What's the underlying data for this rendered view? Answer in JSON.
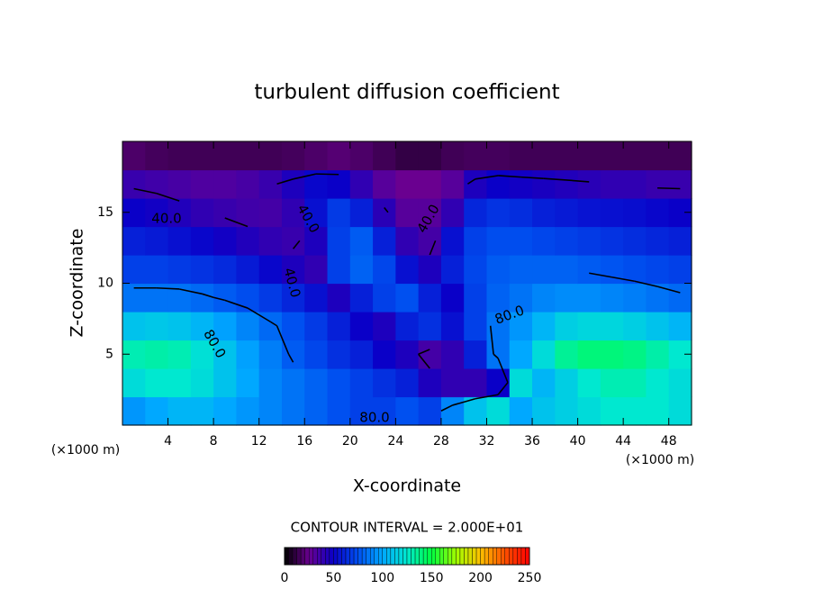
{
  "chart_data": {
    "type": "contour",
    "title": "turbulent diffusion coefficient",
    "x_label": "X-coordinate",
    "y_label": "Z-coordinate",
    "x_unit": "(×1000 m)",
    "y_unit": "(×1000 m)",
    "xlim": [
      0,
      50
    ],
    "ylim": [
      0,
      20
    ],
    "xticks": [
      4,
      8,
      12,
      16,
      20,
      24,
      28,
      32,
      36,
      40,
      44,
      48
    ],
    "yticks": [
      5,
      10,
      15
    ],
    "z": [
      [
        95,
        100,
        105,
        105,
        100,
        95,
        90,
        85,
        80,
        75,
        70,
        70,
        75,
        70,
        90,
        110,
        120,
        100,
        110,
        115,
        120,
        125,
        125,
        125,
        120
      ],
      [
        120,
        125,
        125,
        120,
        110,
        100,
        90,
        85,
        80,
        75,
        70,
        65,
        60,
        45,
        40,
        40,
        50,
        120,
        105,
        115,
        125,
        130,
        130,
        125,
        120
      ],
      [
        130,
        132,
        130,
        122,
        110,
        98,
        88,
        78,
        72,
        65,
        60,
        50,
        45,
        35,
        40,
        60,
        85,
        100,
        120,
        135,
        140,
        140,
        138,
        132,
        125
      ],
      [
        110,
        112,
        110,
        105,
        98,
        90,
        82,
        75,
        68,
        60,
        50,
        45,
        60,
        65,
        55,
        70,
        85,
        95,
        105,
        115,
        118,
        118,
        115,
        110,
        105
      ],
      [
        85,
        85,
        85,
        82,
        78,
        74,
        68,
        62,
        55,
        45,
        60,
        70,
        75,
        60,
        50,
        70,
        80,
        85,
        90,
        92,
        92,
        90,
        88,
        85,
        82
      ],
      [
        70,
        70,
        68,
        66,
        63,
        58,
        52,
        45,
        40,
        70,
        80,
        72,
        55,
        45,
        60,
        72,
        78,
        80,
        80,
        80,
        78,
        76,
        74,
        72,
        70
      ],
      [
        60,
        58,
        55,
        52,
        48,
        44,
        40,
        38,
        45,
        70,
        78,
        60,
        40,
        35,
        55,
        70,
        74,
        74,
        72,
        70,
        68,
        66,
        64,
        62,
        60
      ],
      [
        50,
        48,
        44,
        40,
        38,
        36,
        35,
        40,
        55,
        68,
        60,
        42,
        30,
        30,
        40,
        62,
        66,
        64,
        60,
        58,
        56,
        55,
        54,
        52,
        50
      ],
      [
        38,
        36,
        34,
        32,
        32,
        34,
        38,
        45,
        52,
        50,
        40,
        30,
        25,
        25,
        30,
        45,
        50,
        48,
        46,
        44,
        42,
        40,
        40,
        38,
        38
      ],
      [
        18,
        16,
        15,
        15,
        15,
        15,
        15,
        16,
        18,
        20,
        18,
        15,
        12,
        12,
        15,
        16,
        16,
        15,
        15,
        15,
        15,
        15,
        15,
        15,
        15
      ]
    ],
    "contour_levels": [
      {
        "value": 40,
        "label": "40.0"
      },
      {
        "value": 80,
        "label": "80.0"
      }
    ],
    "contour_interval": "CONTOUR INTERVAL = 2.000E+01",
    "clim": [
      0,
      250
    ],
    "colorbar_ticks": [
      0,
      50,
      100,
      150,
      200,
      250
    ],
    "colormap": [
      "#000000",
      "#6a0090",
      "#0a00c8",
      "#0050f0",
      "#00a8ff",
      "#00e8d0",
      "#00ff40",
      "#a0ff00",
      "#ffc000",
      "#ff5000",
      "#ff0000"
    ]
  }
}
